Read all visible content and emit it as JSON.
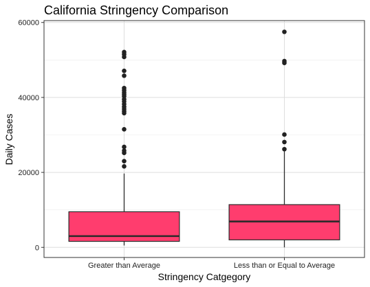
{
  "chart_data": {
    "type": "box",
    "title": "California Stringency Comparison",
    "xlabel": "Stringency Catgegory",
    "ylabel": "Daily Cases",
    "ylim": [
      -2700,
      60500
    ],
    "yticks": [
      0,
      20000,
      40000,
      60000
    ],
    "yticklabels": [
      "0",
      "20000",
      "40000",
      "60000"
    ],
    "grid": true,
    "colors": {
      "box_fill": "#ff3d6e",
      "median": "#2a2a2a",
      "whisker": "#2a2a2a",
      "outlier": "#222222",
      "grid": "#dddddd",
      "panel_border": "#333333"
    },
    "categories": [
      "Greater than Average",
      "Less than or Equal to Average"
    ],
    "boxes": [
      {
        "category": "Greater than Average",
        "whisker_low": 500,
        "q1": 1600,
        "median": 3000,
        "q3": 9500,
        "whisker_high": 19700,
        "outliers": [
          21600,
          23000,
          25200,
          25800,
          26800,
          31500,
          35800,
          36300,
          36900,
          37500,
          38200,
          38900,
          39500,
          40300,
          40800,
          41300,
          41900,
          42500,
          45800,
          47100,
          50800,
          51500,
          52100
        ]
      },
      {
        "category": "Less than or Equal to Average",
        "whisker_low": 0,
        "q1": 2000,
        "median": 6900,
        "q3": 11400,
        "whisker_high": 25600,
        "outliers": [
          26200,
          28100,
          30100,
          49200,
          49700,
          57500
        ]
      }
    ]
  }
}
